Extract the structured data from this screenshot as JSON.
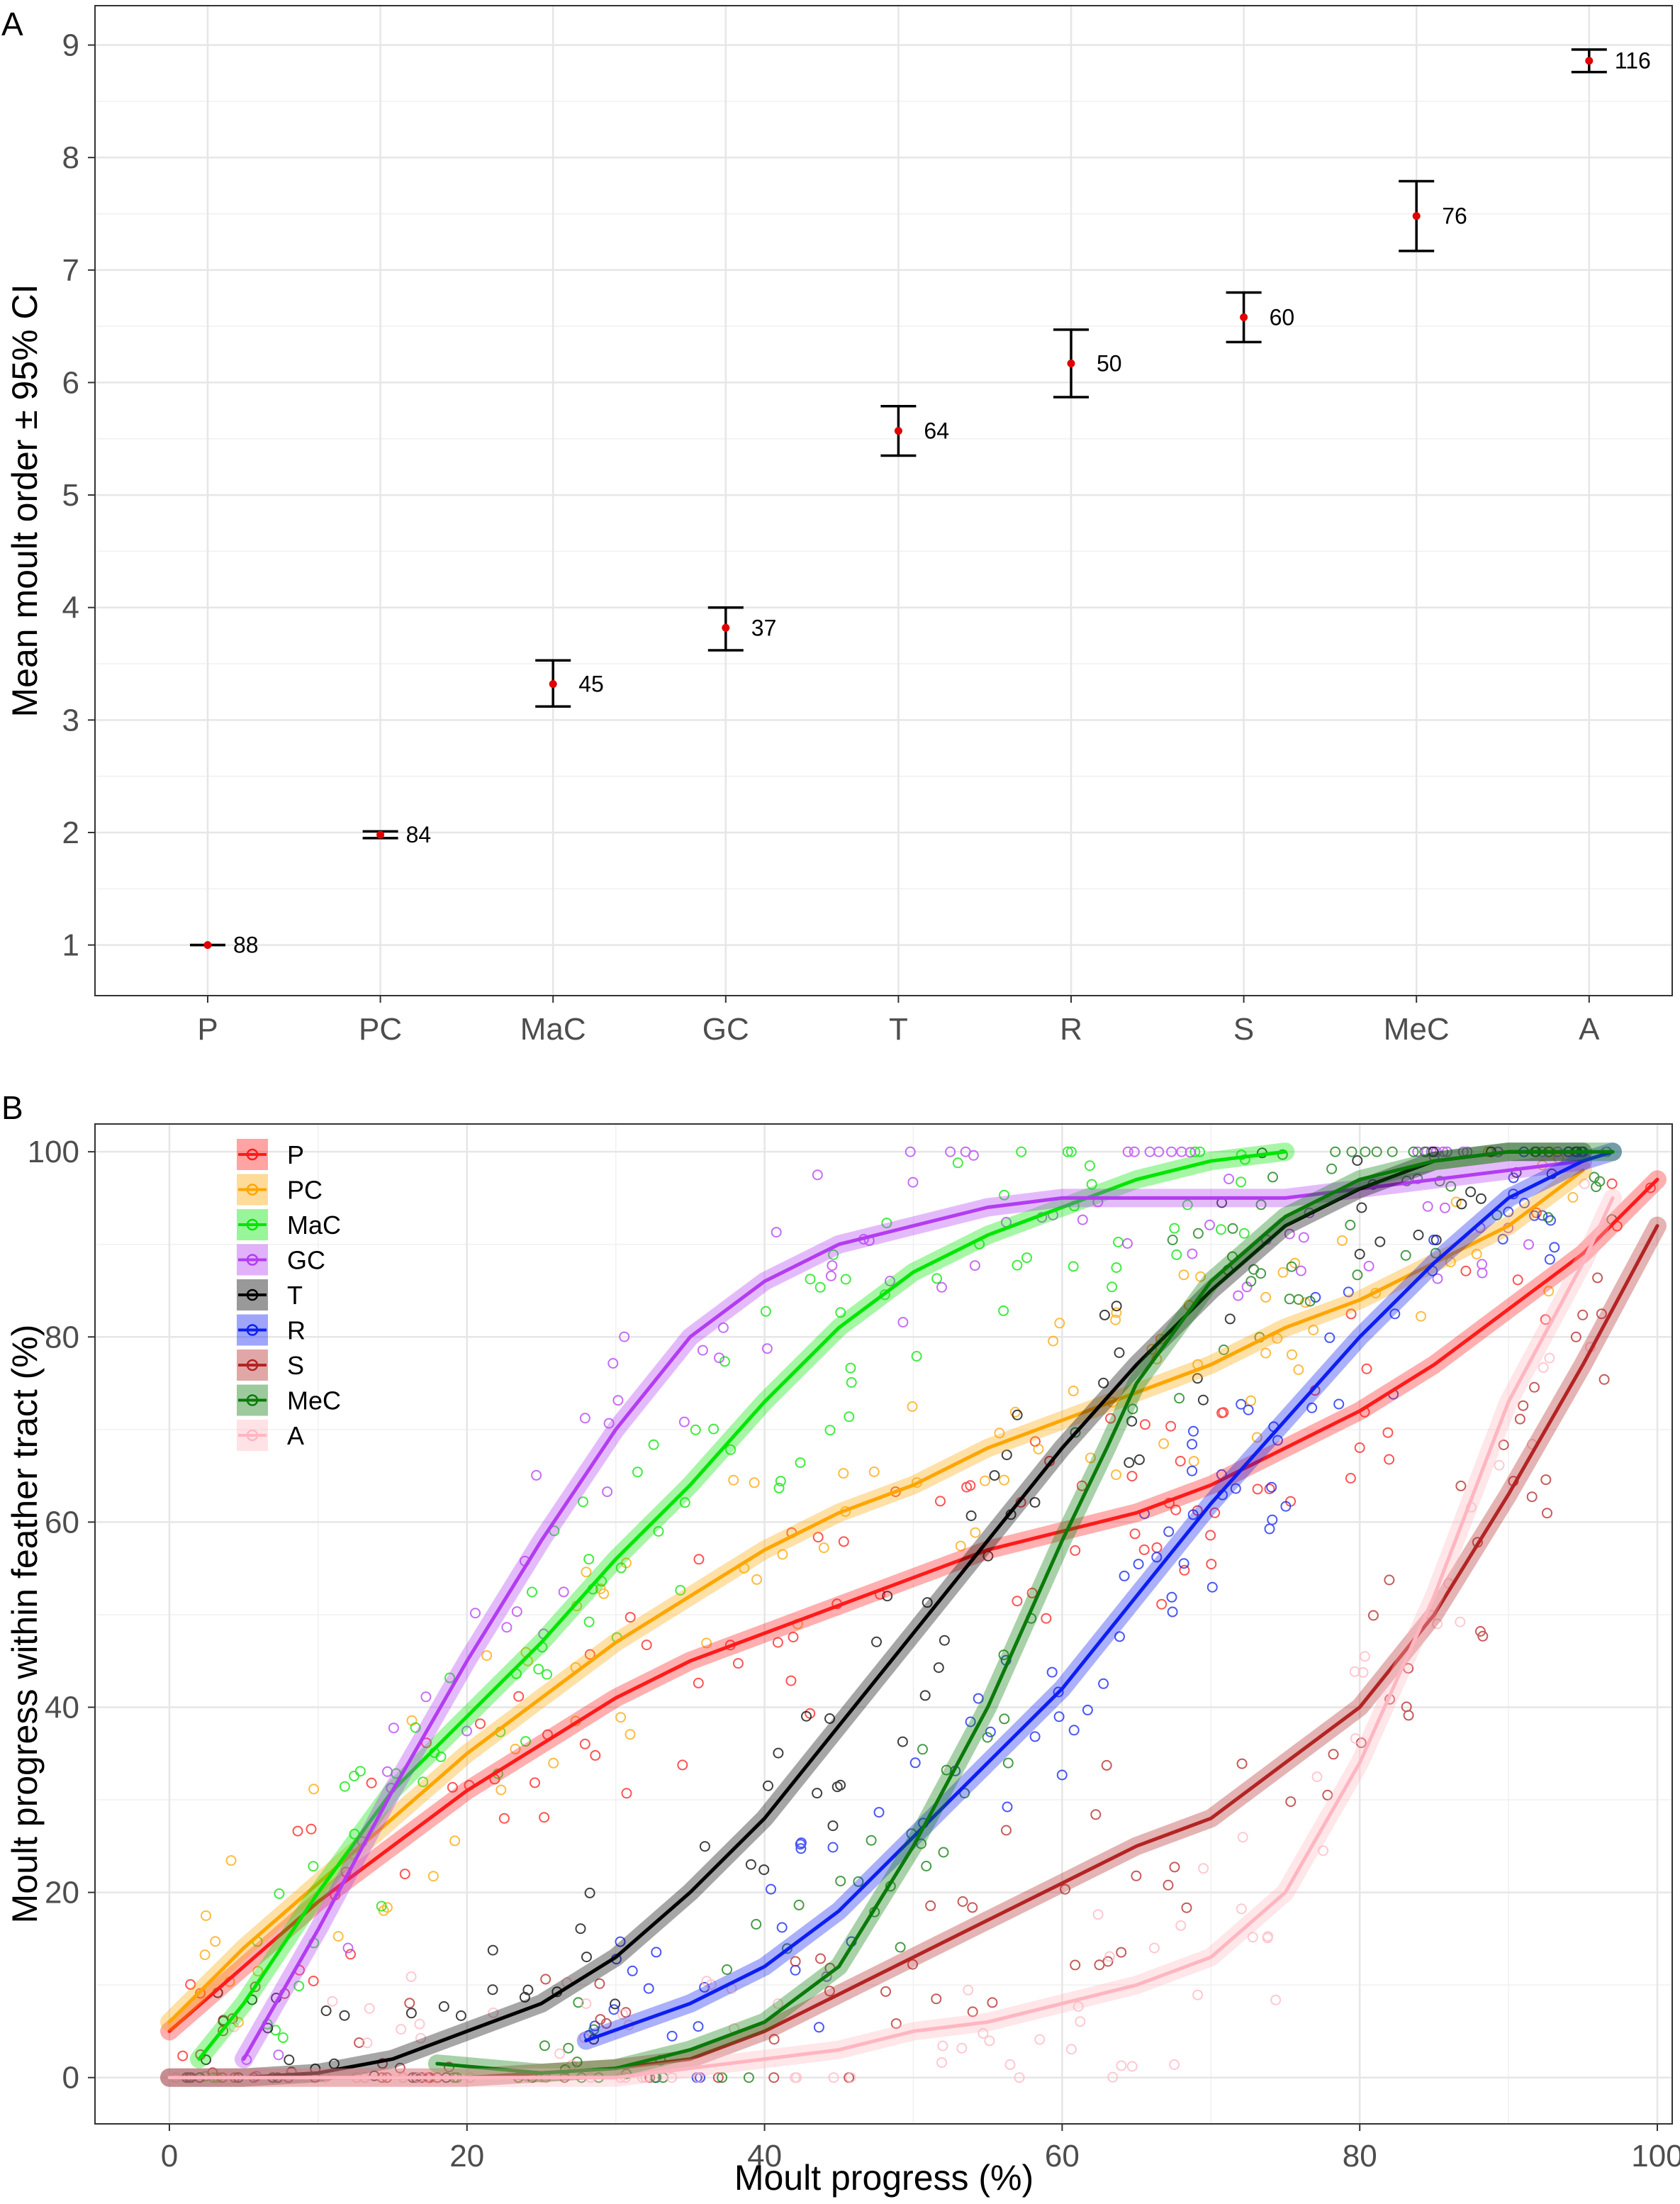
{
  "chart_data": [
    {
      "panel": "A",
      "type": "errorbar",
      "xlabel": "",
      "ylabel": "Mean moult order ± 95% CI",
      "categories": [
        "P",
        "PC",
        "MaC",
        "GC",
        "T",
        "R",
        "S",
        "MeC",
        "A"
      ],
      "mean": [
        1.0,
        1.98,
        3.32,
        3.82,
        5.57,
        6.17,
        6.58,
        7.48,
        8.86
      ],
      "ci_low": [
        1.0,
        1.95,
        3.12,
        3.62,
        5.35,
        5.87,
        6.36,
        7.17,
        8.76
      ],
      "ci_high": [
        1.0,
        2.01,
        3.53,
        4.0,
        5.79,
        6.47,
        6.8,
        7.79,
        8.96
      ],
      "n": [
        "88",
        "84",
        "45",
        "37",
        "64",
        "50",
        "60",
        "76",
        "116"
      ],
      "yticks": [
        "1",
        "2",
        "3",
        "4",
        "5",
        "6",
        "7",
        "8",
        "9"
      ],
      "ylim": [
        0.55,
        9.35
      ],
      "grid": true
    },
    {
      "panel": "B",
      "type": "scatter",
      "xlabel": "Moult progress (%)",
      "ylabel": "Moult progress within feather tract (%)",
      "xlim": [
        -5,
        101
      ],
      "ylim": [
        -5,
        103
      ],
      "xticks": [
        "0",
        "20",
        "40",
        "60",
        "80",
        "100"
      ],
      "yticks": [
        "0",
        "20",
        "40",
        "60",
        "80",
        "100"
      ],
      "legend_position": "top-left",
      "grid": true,
      "series": [
        {
          "name": "P",
          "color": "#ff1a1a",
          "x": [
            0,
            5,
            10,
            15,
            20,
            25,
            30,
            35,
            40,
            45,
            50,
            55,
            60,
            65,
            70,
            75,
            80,
            85,
            90,
            95,
            100
          ],
          "y": [
            5,
            12,
            19,
            25,
            31,
            36,
            41,
            45,
            48,
            51,
            54,
            57,
            59,
            61,
            64,
            68,
            72,
            77,
            83,
            89,
            97
          ]
        },
        {
          "name": "PC",
          "color": "#ffa500",
          "x": [
            0,
            5,
            10,
            15,
            20,
            25,
            30,
            35,
            40,
            45,
            50,
            55,
            60,
            65,
            70,
            75,
            80,
            85,
            90,
            95
          ],
          "y": [
            6,
            14,
            21,
            28,
            35,
            41,
            47,
            52,
            57,
            61,
            64,
            68,
            71,
            74,
            77,
            81,
            84,
            88,
            92,
            98
          ]
        },
        {
          "name": "MaC",
          "color": "#00e600",
          "x": [
            2,
            5,
            10,
            15,
            20,
            25,
            30,
            35,
            40,
            45,
            50,
            55,
            60,
            65,
            70,
            75
          ],
          "y": [
            2,
            8,
            20,
            31,
            39,
            47,
            56,
            64,
            73,
            81,
            87,
            91,
            94,
            97,
            99,
            100
          ]
        },
        {
          "name": "GC",
          "color": "#b33cf2",
          "x": [
            5,
            10,
            15,
            20,
            25,
            30,
            35,
            40,
            45,
            50,
            55,
            60,
            65,
            70,
            75,
            80,
            85,
            90,
            95
          ],
          "y": [
            2,
            16,
            31,
            45,
            58,
            70,
            80,
            86,
            90,
            92,
            94,
            95,
            95,
            95,
            95,
            96,
            97,
            98,
            99
          ]
        },
        {
          "name": "T",
          "color": "#000000",
          "x": [
            0,
            5,
            10,
            15,
            20,
            25,
            30,
            35,
            40,
            45,
            50,
            55,
            60,
            65,
            70,
            75,
            80,
            85,
            90,
            95
          ],
          "y": [
            0,
            0,
            0.5,
            2,
            5,
            8,
            13,
            20,
            28,
            38,
            48,
            58,
            68,
            77,
            85,
            92,
            96,
            99,
            100,
            100
          ]
        },
        {
          "name": "R",
          "color": "#0d1ef2",
          "x": [
            28,
            35,
            40,
            45,
            50,
            55,
            60,
            65,
            70,
            75,
            80,
            85,
            90,
            95,
            97
          ],
          "y": [
            4,
            8,
            12,
            18,
            26,
            34,
            42,
            52,
            62,
            71,
            80,
            88,
            95,
            99,
            100
          ]
        },
        {
          "name": "S",
          "color": "#b32424",
          "x": [
            0,
            20,
            30,
            35,
            40,
            45,
            50,
            55,
            60,
            65,
            70,
            75,
            80,
            85,
            90,
            95,
            100
          ],
          "y": [
            0,
            0,
            1,
            2,
            5,
            9,
            13,
            17,
            21,
            25,
            28,
            34,
            40,
            50,
            63,
            77,
            92
          ]
        },
        {
          "name": "MeC",
          "color": "#0a7a0a",
          "x": [
            18,
            25,
            30,
            35,
            40,
            45,
            50,
            55,
            60,
            63,
            65,
            70,
            75,
            80,
            85,
            90,
            95,
            97
          ],
          "y": [
            1.5,
            0.5,
            1,
            3,
            6,
            12,
            25,
            40,
            58,
            68,
            75,
            86,
            93,
            97,
            99,
            100,
            100,
            100
          ]
        },
        {
          "name": "A",
          "color": "#ffb6c1",
          "x": [
            0,
            30,
            40,
            45,
            50,
            55,
            60,
            65,
            70,
            75,
            80,
            85,
            90,
            95,
            97
          ],
          "y": [
            0,
            0,
            2,
            3,
            5,
            6,
            8,
            10,
            13,
            20,
            34,
            52,
            73,
            88,
            95
          ]
        }
      ]
    }
  ]
}
